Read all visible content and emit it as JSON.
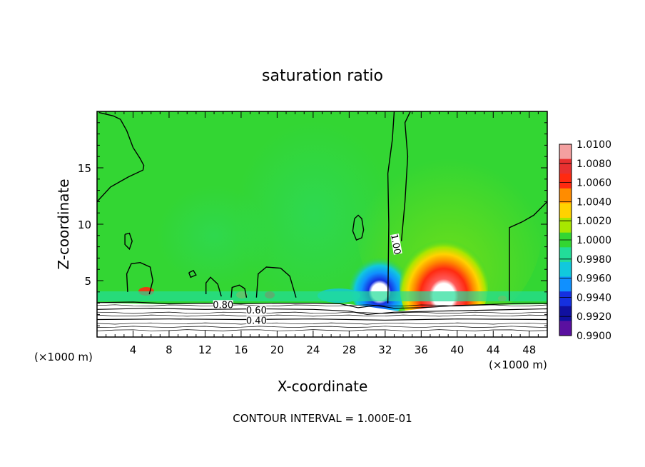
{
  "chart_data": {
    "type": "heatmap",
    "title": "saturation ratio",
    "xlabel": "X-coordinate",
    "ylabel": "Z-coordinate",
    "x_unit_left": "(×1000 m)",
    "x_unit_right": "(×1000 m)",
    "xlim": [
      0,
      50
    ],
    "ylim": [
      0,
      20
    ],
    "x_ticks": [
      4,
      8,
      12,
      16,
      20,
      24,
      28,
      32,
      36,
      40,
      44,
      48
    ],
    "y_ticks": [
      5,
      10,
      15
    ],
    "footer": "CONTOUR INTERVAL = 1.000E-01",
    "colorbar": {
      "levels": [
        "1.0100",
        "1.0080",
        "1.0060",
        "1.0040",
        "1.0020",
        "1.0000",
        "0.9980",
        "0.9960",
        "0.9940",
        "0.9920",
        "0.9900"
      ],
      "colors": [
        "#f4a0a0",
        "#e83030",
        "#ff2a10",
        "#ff8c00",
        "#ffd200",
        "#a8e600",
        "#33d633",
        "#22dd99",
        "#11c8dd",
        "#1090ff",
        "#1530e0",
        "#1010a0",
        "#5a10a0"
      ]
    },
    "contour_labels": [
      {
        "text": "1.00",
        "x": 33.0,
        "z": 8.2
      },
      {
        "text": "0.80",
        "x": 14.0,
        "z": 2.7
      },
      {
        "text": "0.60",
        "x": 17.7,
        "z": 2.2
      },
      {
        "text": "0.40",
        "x": 17.7,
        "z": 1.3
      }
    ],
    "contours_1_00": [
      [
        [
          0,
          12.0
        ],
        [
          1.5,
          13.3
        ],
        [
          3.5,
          14.2
        ],
        [
          5.1,
          14.8
        ],
        [
          5.2,
          15.2
        ],
        [
          4.8,
          15.8
        ],
        [
          4.0,
          16.8
        ],
        [
          3.3,
          18.3
        ],
        [
          2.6,
          19.3
        ],
        [
          1.8,
          19.6
        ],
        [
          0.2,
          19.9
        ]
      ],
      [
        [
          32.3,
          3.0
        ],
        [
          32.4,
          10
        ],
        [
          32.3,
          14.5
        ],
        [
          32.8,
          17.5
        ],
        [
          33.0,
          20.0
        ]
      ],
      [
        [
          33.8,
          8.5
        ],
        [
          34.2,
          12
        ],
        [
          34.5,
          16
        ],
        [
          34.2,
          19
        ],
        [
          34.8,
          20.0
        ]
      ],
      [
        [
          45.8,
          3.2
        ],
        [
          45.8,
          9.7
        ],
        [
          47.2,
          10.2
        ],
        [
          48.5,
          10.8
        ],
        [
          50,
          12.0
        ]
      ],
      [
        [
          28.6,
          10.5
        ],
        [
          29.0,
          10.8
        ],
        [
          29.4,
          10.5
        ],
        [
          29.6,
          9.5
        ],
        [
          29.4,
          8.8
        ],
        [
          28.8,
          8.6
        ],
        [
          28.4,
          9.4
        ],
        [
          28.6,
          10.5
        ]
      ],
      [
        [
          3.1,
          9.1
        ],
        [
          3.6,
          9.2
        ],
        [
          3.9,
          8.5
        ],
        [
          3.6,
          7.8
        ],
        [
          3.1,
          8.2
        ],
        [
          3.1,
          9.1
        ]
      ],
      [
        [
          3.4,
          4.0
        ],
        [
          3.3,
          5.6
        ],
        [
          3.8,
          6.5
        ],
        [
          4.8,
          6.6
        ],
        [
          5.9,
          6.2
        ],
        [
          6.2,
          5.0
        ],
        [
          5.8,
          3.8
        ]
      ],
      [
        [
          10.2,
          5.7
        ],
        [
          10.7,
          5.9
        ],
        [
          11.0,
          5.5
        ],
        [
          10.4,
          5.3
        ],
        [
          10.2,
          5.7
        ]
      ],
      [
        [
          12.1,
          3.8
        ],
        [
          12.1,
          4.8
        ],
        [
          12.6,
          5.3
        ],
        [
          13.4,
          4.7
        ],
        [
          13.8,
          3.6
        ]
      ],
      [
        [
          14.9,
          3.5
        ],
        [
          15.0,
          4.4
        ],
        [
          15.8,
          4.6
        ],
        [
          16.4,
          4.3
        ],
        [
          16.6,
          3.5
        ]
      ],
      [
        [
          17.7,
          3.5
        ],
        [
          17.9,
          5.6
        ],
        [
          18.8,
          6.2
        ],
        [
          20.4,
          6.1
        ],
        [
          21.4,
          5.4
        ],
        [
          22.1,
          3.5
        ]
      ]
    ],
    "contours_low": [
      {
        "level": "0.80",
        "points": [
          [
            0,
            3.05
          ],
          [
            4,
            3.1
          ],
          [
            8,
            2.95
          ],
          [
            12,
            3.0
          ],
          [
            16,
            2.95
          ],
          [
            20,
            3.0
          ],
          [
            24,
            3.0
          ],
          [
            27,
            2.95
          ],
          [
            29,
            2.6
          ],
          [
            31,
            2.8
          ],
          [
            33,
            2.55
          ],
          [
            36,
            2.6
          ],
          [
            40,
            2.8
          ],
          [
            44,
            2.9
          ],
          [
            48,
            3.0
          ],
          [
            50,
            3.0
          ]
        ]
      },
      {
        "level": "0.60",
        "points": [
          [
            0,
            2.45
          ],
          [
            6,
            2.55
          ],
          [
            12,
            2.45
          ],
          [
            18,
            2.5
          ],
          [
            24,
            2.45
          ],
          [
            28,
            2.3
          ],
          [
            30,
            2.0
          ],
          [
            33,
            2.2
          ],
          [
            38,
            2.3
          ],
          [
            44,
            2.4
          ],
          [
            50,
            2.5
          ]
        ]
      },
      {
        "level": "0.40",
        "points": [
          [
            0,
            1.55
          ],
          [
            8,
            1.6
          ],
          [
            16,
            1.55
          ],
          [
            24,
            1.6
          ],
          [
            32,
            1.5
          ],
          [
            40,
            1.6
          ],
          [
            50,
            1.55
          ]
        ]
      }
    ]
  }
}
